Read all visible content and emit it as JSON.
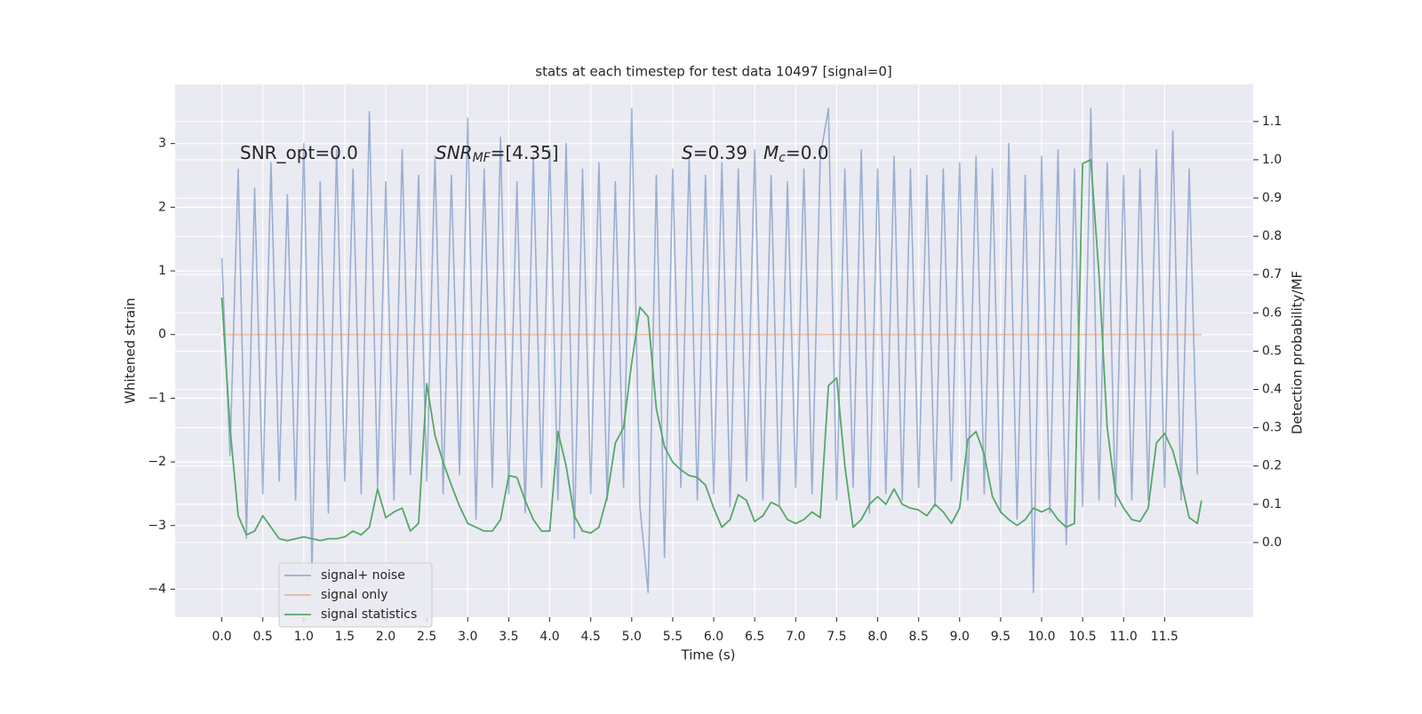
{
  "chart_data": {
    "type": "line",
    "title": "stats at each timestep for test data 10497 [signal=0]",
    "x_label": "Time (s)",
    "y_label": "Whitened strain",
    "y2_label": "Detection probability/MF",
    "xlim": [
      -0.57,
      12.58
    ],
    "ylim": [
      -4.44,
      3.93
    ],
    "y2lim": [
      -0.195,
      1.197
    ],
    "xticks": [
      {
        "value": 0,
        "label": "0.0"
      },
      {
        "value": 0.5,
        "label": "0.5"
      },
      {
        "value": 1,
        "label": "1.0"
      },
      {
        "value": 1.5,
        "label": "1.5"
      },
      {
        "value": 2,
        "label": "2.0"
      },
      {
        "value": 2.5,
        "label": "2.5"
      },
      {
        "value": 3,
        "label": "3.0"
      },
      {
        "value": 3.5,
        "label": "3.5"
      },
      {
        "value": 4,
        "label": "4.0"
      },
      {
        "value": 4.5,
        "label": "4.5"
      },
      {
        "value": 5,
        "label": "5.0"
      },
      {
        "value": 5.5,
        "label": "5.5"
      },
      {
        "value": 6,
        "label": "6.0"
      },
      {
        "value": 6.5,
        "label": "6.5"
      },
      {
        "value": 7,
        "label": "7.0"
      },
      {
        "value": 7.5,
        "label": "7.5"
      },
      {
        "value": 8,
        "label": "8.0"
      },
      {
        "value": 8.5,
        "label": "8.5"
      },
      {
        "value": 9,
        "label": "9.0"
      },
      {
        "value": 9.5,
        "label": "9.5"
      },
      {
        "value": 10,
        "label": "10.0"
      },
      {
        "value": 10.5,
        "label": "10.5"
      },
      {
        "value": 11,
        "label": "11.0"
      },
      {
        "value": 11.5,
        "label": "11.5"
      }
    ],
    "yticks": [
      {
        "value": -4,
        "label": "−4"
      },
      {
        "value": -3,
        "label": "−3"
      },
      {
        "value": -2,
        "label": "−2"
      },
      {
        "value": -1,
        "label": "−1"
      },
      0,
      1,
      2,
      3
    ],
    "y2ticks": [
      {
        "value": 0,
        "label": "0.0"
      },
      {
        "value": 0.1,
        "label": "0.1"
      },
      {
        "value": 0.2,
        "label": "0.2"
      },
      {
        "value": 0.3,
        "label": "0.3"
      },
      {
        "value": 0.4,
        "label": "0.4"
      },
      {
        "value": 0.5,
        "label": "0.5"
      },
      {
        "value": 0.6,
        "label": "0.6"
      },
      {
        "value": 0.7,
        "label": "0.7"
      },
      {
        "value": 0.8,
        "label": "0.8"
      },
      {
        "value": 0.9,
        "label": "0.9"
      },
      {
        "value": 1,
        "label": "1.0"
      },
      {
        "value": 1.1,
        "label": "1.1"
      }
    ],
    "grid": true,
    "legend_loc": "lower left",
    "annotations": [
      {
        "text": "SNR_opt=0.0"
      },
      {
        "base": "SNR",
        "sub": "MF",
        "after": "=[4.35]"
      },
      {
        "base": "S",
        "after": "=0.39"
      },
      {
        "base": "M",
        "sub": "c",
        "after": "=0.0"
      }
    ],
    "series": [
      {
        "name": "signal+ noise",
        "color": "#4c72b0",
        "alpha": 0.5,
        "axis": "y",
        "x": [
          0,
          0.1,
          0.2,
          0.3,
          0.4,
          0.5,
          0.6,
          0.7,
          0.8,
          0.9,
          1,
          1.1,
          1.2,
          1.3,
          1.4,
          1.5,
          1.6,
          1.7,
          1.8,
          1.9,
          2,
          2.1,
          2.2,
          2.3,
          2.4,
          2.5,
          2.6,
          2.7,
          2.8,
          2.9,
          3,
          3.1,
          3.2,
          3.3,
          3.4,
          3.5,
          3.6,
          3.7,
          3.8,
          3.9,
          4,
          4.1,
          4.2,
          4.3,
          4.4,
          4.5,
          4.6,
          4.7,
          4.8,
          4.9,
          5,
          5.1,
          5.2,
          5.3,
          5.4,
          5.5,
          5.6,
          5.7,
          5.8,
          5.9,
          6,
          6.1,
          6.2,
          6.3,
          6.4,
          6.5,
          6.6,
          6.7,
          6.8,
          6.9,
          7,
          7.1,
          7.2,
          7.3,
          7.4,
          7.5,
          7.6,
          7.7,
          7.8,
          7.9,
          8,
          8.1,
          8.2,
          8.3,
          8.4,
          8.5,
          8.6,
          8.7,
          8.8,
          8.9,
          9,
          9.1,
          9.2,
          9.3,
          9.4,
          9.5,
          9.6,
          9.7,
          9.8,
          9.9,
          10,
          10.1,
          10.2,
          10.3,
          10.4,
          10.5,
          10.6,
          10.7,
          10.8,
          10.9,
          11,
          11.1,
          11.2,
          11.3,
          11.4,
          11.5,
          11.6,
          11.7,
          11.8,
          11.9
        ],
        "values": [
          1.2,
          -1.9,
          2.6,
          -3.2,
          2.3,
          -2.5,
          2.7,
          -2.3,
          2.2,
          -2.6,
          3.0,
          -3.7,
          2.4,
          -2.8,
          2.9,
          -2.3,
          2.6,
          -2.5,
          3.5,
          -2.4,
          2.4,
          -2.6,
          2.9,
          -2.2,
          2.5,
          -2.3,
          2.8,
          -2.5,
          2.5,
          -2.2,
          3.4,
          -2.9,
          2.6,
          -2.4,
          3.1,
          -2.5,
          2.4,
          -2.8,
          2.8,
          -2.4,
          2.9,
          -2.6,
          3.0,
          -3.2,
          2.6,
          -2.5,
          2.7,
          -2.6,
          2.4,
          -2.4,
          3.55,
          -2.7,
          -4.05,
          2.5,
          -3.5,
          2.6,
          -2.4,
          2.8,
          -2.6,
          2.5,
          -2.5,
          2.7,
          -2.7,
          2.6,
          -2.3,
          2.9,
          -2.6,
          2.5,
          -2.7,
          2.4,
          -2.4,
          2.6,
          -2.5,
          2.8,
          3.55,
          -2.6,
          2.6,
          -2.4,
          2.9,
          -2.8,
          2.6,
          -2.5,
          2.8,
          -2.6,
          2.6,
          -2.4,
          2.5,
          -2.7,
          2.6,
          -2.3,
          2.7,
          -2.6,
          2.8,
          -2.5,
          2.6,
          -2.8,
          3.0,
          -2.9,
          2.5,
          -4.05,
          2.8,
          -2.8,
          2.9,
          -3.3,
          2.6,
          -2.7,
          3.55,
          -2.6,
          2.7,
          -2.7,
          2.5,
          -2.6,
          2.6,
          -2.6,
          2.9,
          -2.4,
          3.2,
          -2.6,
          2.6,
          -2.2
        ]
      },
      {
        "name": "signal only",
        "color": "#dd8452",
        "alpha": 0.5,
        "axis": "y",
        "x": [
          0,
          11.95
        ],
        "values": [
          0,
          0
        ]
      },
      {
        "name": "signal statistics",
        "color": "#55a868",
        "alpha": 1,
        "axis": "y2",
        "x": [
          0,
          0.1,
          0.2,
          0.3,
          0.4,
          0.5,
          0.6,
          0.7,
          0.8,
          0.9,
          1,
          1.1,
          1.2,
          1.3,
          1.4,
          1.5,
          1.6,
          1.7,
          1.8,
          1.9,
          2,
          2.1,
          2.2,
          2.3,
          2.4,
          2.5,
          2.6,
          2.7,
          2.8,
          2.9,
          3,
          3.1,
          3.2,
          3.3,
          3.4,
          3.5,
          3.6,
          3.7,
          3.8,
          3.9,
          4,
          4.1,
          4.2,
          4.3,
          4.4,
          4.5,
          4.6,
          4.7,
          4.8,
          4.9,
          5,
          5.1,
          5.2,
          5.3,
          5.4,
          5.5,
          5.6,
          5.7,
          5.8,
          5.9,
          6,
          6.1,
          6.2,
          6.3,
          6.4,
          6.5,
          6.6,
          6.7,
          6.8,
          6.9,
          7,
          7.1,
          7.2,
          7.3,
          7.4,
          7.5,
          7.6,
          7.7,
          7.8,
          7.9,
          8,
          8.1,
          8.2,
          8.3,
          8.4,
          8.5,
          8.6,
          8.7,
          8.8,
          8.9,
          9,
          9.1,
          9.2,
          9.3,
          9.4,
          9.5,
          9.6,
          9.7,
          9.8,
          9.9,
          10,
          10.1,
          10.2,
          10.3,
          10.4,
          10.5,
          10.6,
          10.7,
          10.8,
          10.9,
          11,
          11.1,
          11.2,
          11.3,
          11.4,
          11.5,
          11.6,
          11.7,
          11.8,
          11.9,
          11.95
        ],
        "values": [
          0.64,
          0.3,
          0.07,
          0.02,
          0.03,
          0.07,
          0.04,
          0.01,
          0.005,
          0.01,
          0.015,
          0.01,
          0.005,
          0.01,
          0.01,
          0.015,
          0.03,
          0.02,
          0.04,
          0.14,
          0.065,
          0.08,
          0.09,
          0.03,
          0.05,
          0.415,
          0.28,
          0.21,
          0.15,
          0.095,
          0.05,
          0.04,
          0.03,
          0.03,
          0.06,
          0.175,
          0.17,
          0.11,
          0.06,
          0.03,
          0.03,
          0.29,
          0.2,
          0.07,
          0.03,
          0.025,
          0.04,
          0.12,
          0.26,
          0.3,
          0.47,
          0.615,
          0.59,
          0.35,
          0.25,
          0.21,
          0.19,
          0.175,
          0.17,
          0.15,
          0.09,
          0.04,
          0.06,
          0.125,
          0.11,
          0.055,
          0.07,
          0.105,
          0.095,
          0.06,
          0.05,
          0.06,
          0.08,
          0.065,
          0.41,
          0.43,
          0.2,
          0.04,
          0.06,
          0.1,
          0.12,
          0.1,
          0.14,
          0.1,
          0.09,
          0.085,
          0.07,
          0.1,
          0.08,
          0.05,
          0.09,
          0.27,
          0.29,
          0.23,
          0.12,
          0.08,
          0.06,
          0.045,
          0.06,
          0.09,
          0.08,
          0.09,
          0.06,
          0.04,
          0.05,
          0.99,
          1.0,
          0.7,
          0.3,
          0.13,
          0.09,
          0.06,
          0.055,
          0.09,
          0.26,
          0.285,
          0.24,
          0.16,
          0.065,
          0.05,
          0.11
        ]
      }
    ]
  }
}
